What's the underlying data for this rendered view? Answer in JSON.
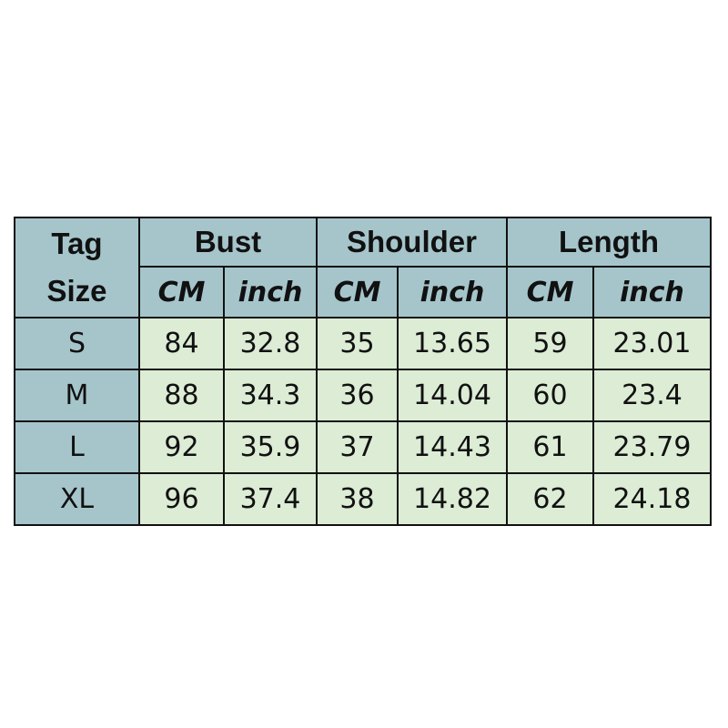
{
  "headers": {
    "tag_size": "Tag Size",
    "bust": "Bust",
    "shoulder": "Shoulder",
    "length": "Length",
    "cm": "CM",
    "inch": "inch"
  },
  "rows": [
    {
      "size": "S",
      "bust_cm": "84",
      "bust_in": "32.8",
      "shoulder_cm": "35",
      "shoulder_in": "13.65",
      "length_cm": "59",
      "length_in": "23.01"
    },
    {
      "size": "M",
      "bust_cm": "88",
      "bust_in": "34.3",
      "shoulder_cm": "36",
      "shoulder_in": "14.04",
      "length_cm": "60",
      "length_in": "23.4"
    },
    {
      "size": "L",
      "bust_cm": "92",
      "bust_in": "35.9",
      "shoulder_cm": "37",
      "shoulder_in": "14.43",
      "length_cm": "61",
      "length_in": "23.79"
    },
    {
      "size": "XL",
      "bust_cm": "96",
      "bust_in": "37.4",
      "shoulder_cm": "38",
      "shoulder_in": "14.82",
      "length_cm": "62",
      "length_in": "24.18"
    }
  ],
  "colors": {
    "header": "#a5c5cb",
    "cell": "#dcecd5"
  }
}
